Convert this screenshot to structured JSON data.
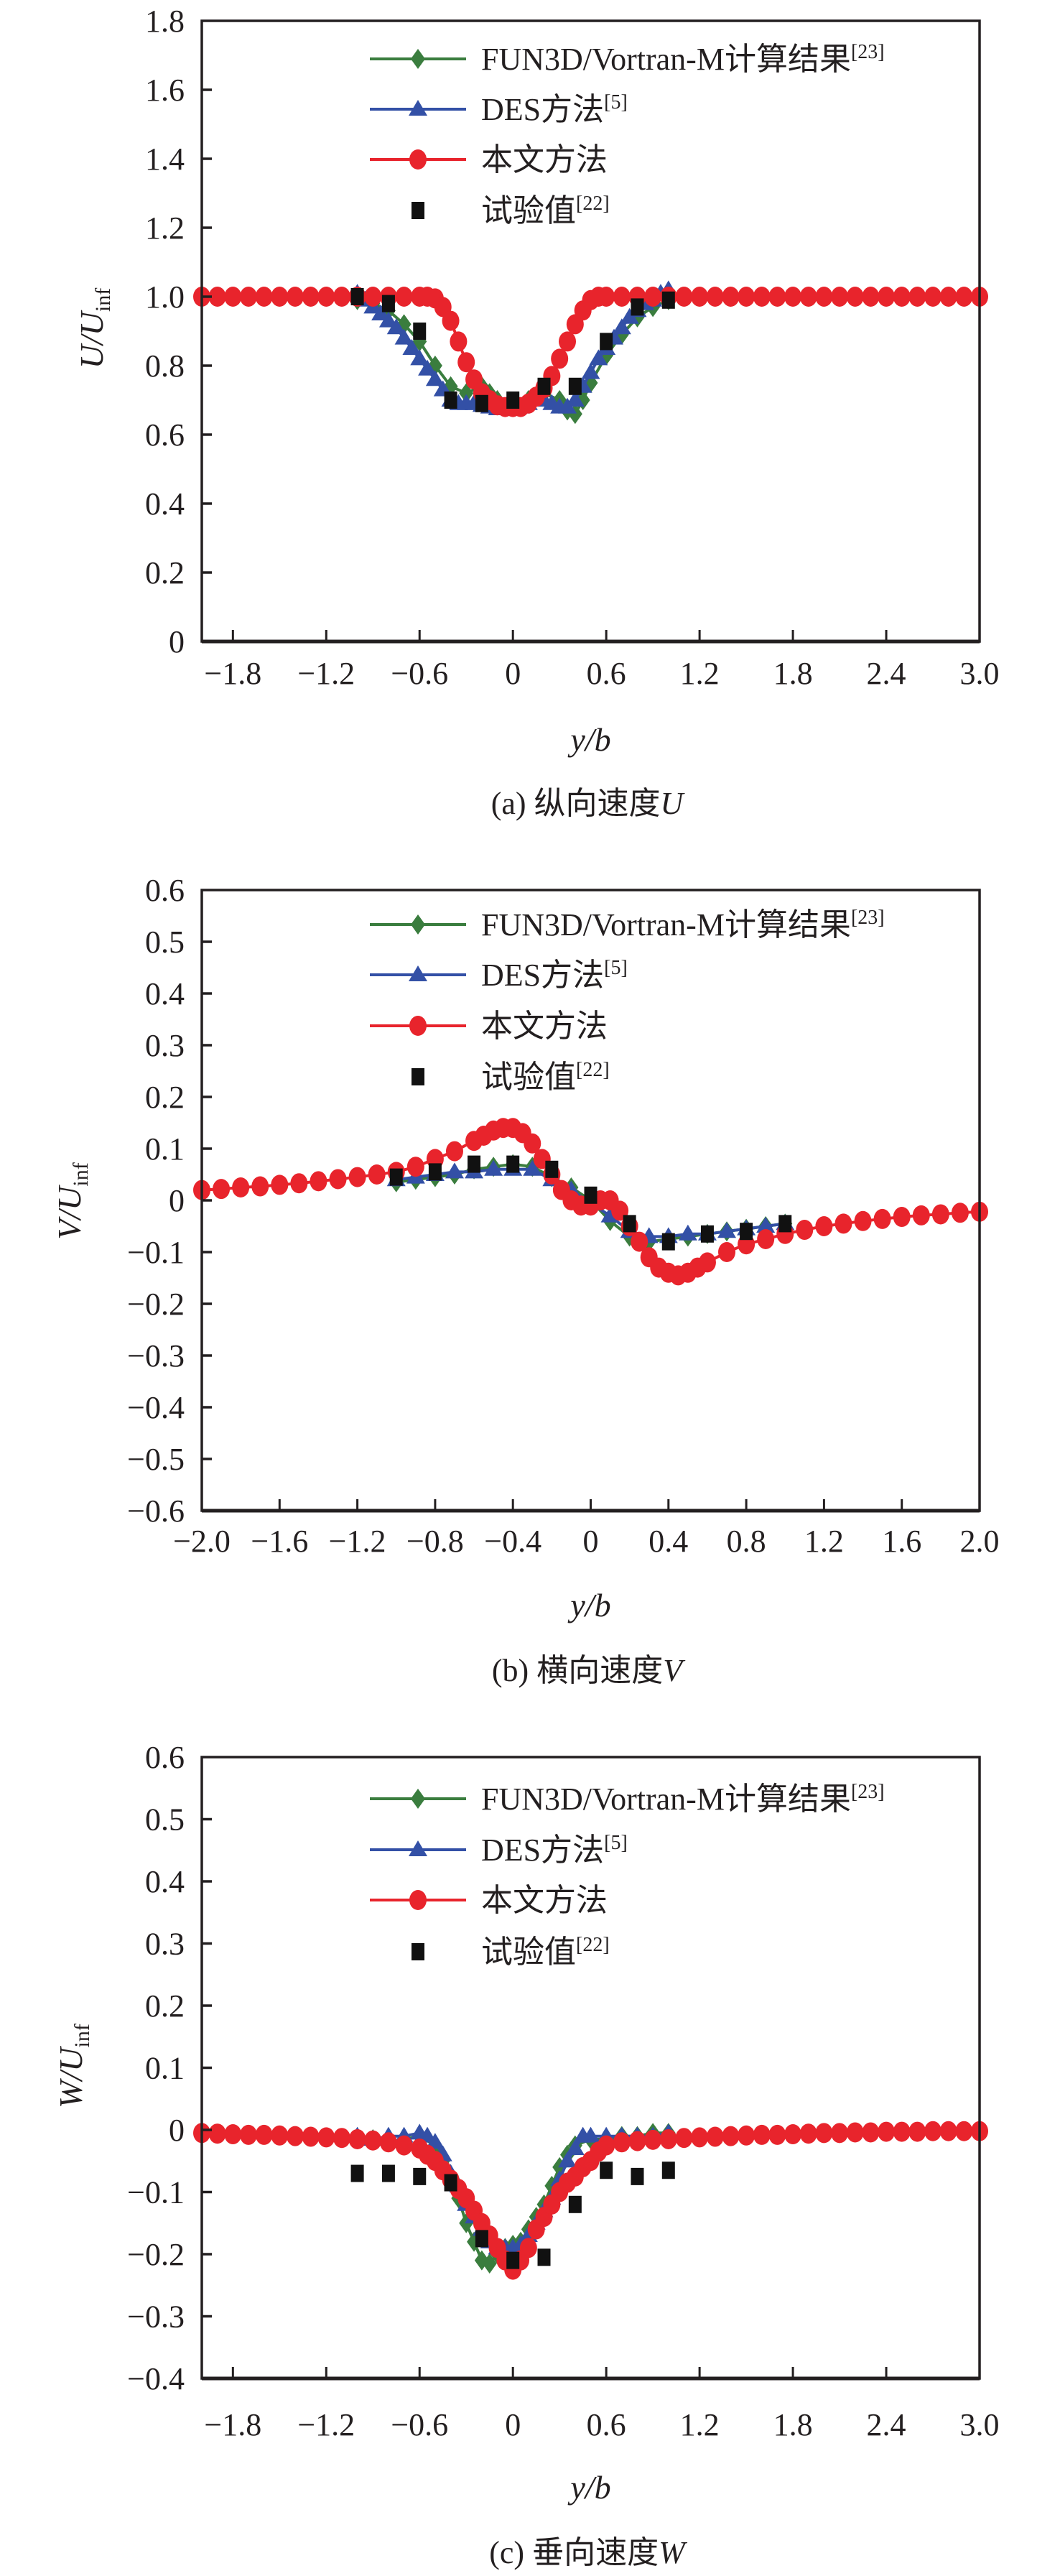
{
  "colors": {
    "fun3d": "#3a7d3e",
    "des": "#3350a6",
    "present": "#e8242c",
    "experiment": "#111111",
    "axis": "#231f20"
  },
  "legend": [
    {
      "key": "fun3d",
      "label": "FUN3D/Vortran-M计算结果",
      "ref": "[23]",
      "marker": "diamond-icon"
    },
    {
      "key": "des",
      "label": "DES方法",
      "ref": "[5]",
      "marker": "triangle-icon"
    },
    {
      "key": "present",
      "label": "本文方法",
      "ref": "",
      "marker": "circle-icon"
    },
    {
      "key": "experiment",
      "label": "试验值",
      "ref": "[22]",
      "marker": "square-icon"
    }
  ],
  "chart_data": [
    {
      "type": "line",
      "caption": "(a) 纵向速度",
      "caption_var": "U",
      "xlabel": "y/b",
      "ylabel": "U/U",
      "ylabel_sub": "inf",
      "xlim": [
        -2.0,
        3.0
      ],
      "ylim": [
        0,
        1.8
      ],
      "xticks": [
        -1.8,
        -1.2,
        -0.6,
        0,
        0.6,
        1.2,
        1.8,
        2.4,
        3.0
      ],
      "xtick_labels": [
        "−1.8",
        "−1.2",
        "−0.6",
        "0",
        "0.6",
        "1.2",
        "1.8",
        "2.4",
        "3.0"
      ],
      "yticks": [
        0,
        0.2,
        0.4,
        0.6,
        0.8,
        1.0,
        1.2,
        1.4,
        1.6,
        1.8
      ],
      "ytick_labels": [
        "0",
        "0.2",
        "0.4",
        "0.6",
        "0.8",
        "1.0",
        "1.2",
        "1.4",
        "1.6",
        "1.8"
      ],
      "grid": false,
      "legend_position": "top-right",
      "series": [
        {
          "name": "FUN3D/Vortran-M计算结果[23]",
          "key": "fun3d",
          "x": [
            -1.0,
            -0.9,
            -0.8,
            -0.7,
            -0.6,
            -0.5,
            -0.4,
            -0.3,
            -0.2,
            -0.15,
            -0.1,
            0,
            0.1,
            0.2,
            0.3,
            0.35,
            0.4,
            0.45,
            0.5,
            0.6,
            0.7,
            0.8,
            0.9,
            1.0
          ],
          "y": [
            0.99,
            0.98,
            0.96,
            0.92,
            0.87,
            0.8,
            0.74,
            0.72,
            0.74,
            0.72,
            0.7,
            0.68,
            0.7,
            0.72,
            0.7,
            0.67,
            0.66,
            0.7,
            0.75,
            0.83,
            0.89,
            0.94,
            0.97,
            0.99
          ]
        },
        {
          "name": "DES方法[5]",
          "key": "des",
          "x": [
            -1.0,
            -0.95,
            -0.9,
            -0.85,
            -0.8,
            -0.75,
            -0.7,
            -0.65,
            -0.6,
            -0.55,
            -0.5,
            -0.45,
            -0.4,
            -0.35,
            -0.3,
            -0.25,
            -0.2,
            -0.15,
            -0.1,
            -0.05,
            0,
            0.05,
            0.1,
            0.15,
            0.2,
            0.25,
            0.3,
            0.35,
            0.4,
            0.45,
            0.5,
            0.55,
            0.6,
            0.65,
            0.7,
            0.75,
            0.8,
            0.85,
            0.9,
            0.95,
            1.0
          ],
          "y": [
            1.01,
            0.99,
            0.97,
            0.95,
            0.93,
            0.91,
            0.88,
            0.85,
            0.82,
            0.79,
            0.76,
            0.73,
            0.7,
            0.69,
            0.69,
            0.69,
            0.685,
            0.68,
            0.675,
            0.675,
            0.675,
            0.68,
            0.69,
            0.7,
            0.7,
            0.69,
            0.68,
            0.68,
            0.7,
            0.74,
            0.78,
            0.82,
            0.85,
            0.88,
            0.91,
            0.94,
            0.96,
            0.98,
            0.99,
            1.01,
            1.02
          ]
        },
        {
          "name": "本文方法",
          "key": "present",
          "x": [
            -2.0,
            -1.9,
            -1.8,
            -1.7,
            -1.6,
            -1.5,
            -1.4,
            -1.3,
            -1.2,
            -1.1,
            -1.0,
            -0.9,
            -0.8,
            -0.7,
            -0.6,
            -0.55,
            -0.5,
            -0.45,
            -0.4,
            -0.35,
            -0.3,
            -0.25,
            -0.2,
            -0.15,
            -0.1,
            -0.05,
            0,
            0.05,
            0.1,
            0.15,
            0.2,
            0.25,
            0.3,
            0.35,
            0.4,
            0.45,
            0.5,
            0.55,
            0.6,
            0.7,
            0.8,
            0.9,
            1.0,
            1.1,
            1.2,
            1.3,
            1.4,
            1.5,
            1.6,
            1.7,
            1.8,
            1.9,
            2.0,
            2.1,
            2.2,
            2.3,
            2.4,
            2.5,
            2.6,
            2.7,
            2.8,
            2.9,
            3.0
          ],
          "y": [
            1.0,
            1.0,
            1.0,
            1.0,
            1.0,
            1.0,
            1.0,
            1.0,
            1.0,
            1.0,
            1.0,
            1.0,
            1.0,
            1.0,
            1.0,
            1.0,
            0.995,
            0.97,
            0.93,
            0.87,
            0.81,
            0.76,
            0.72,
            0.7,
            0.685,
            0.68,
            0.68,
            0.68,
            0.69,
            0.71,
            0.735,
            0.77,
            0.82,
            0.87,
            0.92,
            0.96,
            0.99,
            1.0,
            1.0,
            1.0,
            1.0,
            1.0,
            1.0,
            1.0,
            1.0,
            1.0,
            1.0,
            1.0,
            1.0,
            1.0,
            1.0,
            1.0,
            1.0,
            1.0,
            1.0,
            1.0,
            1.0,
            1.0,
            1.0,
            1.0,
            1.0,
            1.0,
            1.0
          ]
        },
        {
          "name": "试验值[22]",
          "key": "experiment",
          "x": [
            -1.0,
            -0.8,
            -0.6,
            -0.4,
            -0.2,
            0,
            0.2,
            0.4,
            0.6,
            0.8,
            1.0
          ],
          "y": [
            1.0,
            0.98,
            0.9,
            0.7,
            0.69,
            0.7,
            0.74,
            0.74,
            0.87,
            0.97,
            0.99
          ]
        }
      ]
    },
    {
      "type": "line",
      "caption": "(b) 横向速度",
      "caption_var": "V",
      "xlabel": "y/b",
      "ylabel": "V/U",
      "ylabel_sub": "inf",
      "xlim": [
        -2.0,
        2.0
      ],
      "ylim": [
        -0.6,
        0.6
      ],
      "xticks": [
        -2.0,
        -1.6,
        -1.2,
        -0.8,
        -0.4,
        0,
        0.4,
        0.8,
        1.2,
        1.6,
        2.0
      ],
      "xtick_labels": [
        "−2.0",
        "−1.6",
        "−1.2",
        "−0.8",
        "−0.4",
        "0",
        "0.4",
        "0.8",
        "1.2",
        "1.6",
        "2.0"
      ],
      "yticks": [
        -0.6,
        -0.5,
        -0.4,
        -0.3,
        -0.2,
        -0.1,
        0,
        0.1,
        0.2,
        0.3,
        0.4,
        0.5,
        0.6
      ],
      "ytick_labels": [
        "−0.6",
        "−0.5",
        "−0.4",
        "−0.3",
        "−0.2",
        "−0.1",
        "0",
        "0.1",
        "0.2",
        "0.3",
        "0.4",
        "0.5",
        "0.6"
      ],
      "grid": false,
      "legend_position": "top-right",
      "series": [
        {
          "name": "FUN3D/Vortran-M计算结果[23]",
          "key": "fun3d",
          "x": [
            -1.0,
            -0.9,
            -0.8,
            -0.7,
            -0.6,
            -0.5,
            -0.4,
            -0.3,
            -0.2,
            -0.1,
            0,
            0.1,
            0.2,
            0.3,
            0.4,
            0.5,
            0.6,
            0.7,
            0.8,
            0.9,
            1.0
          ],
          "y": [
            0.035,
            0.04,
            0.045,
            0.05,
            0.06,
            0.065,
            0.07,
            0.065,
            0.045,
            0.025,
            0.0,
            -0.04,
            -0.07,
            -0.08,
            -0.075,
            -0.07,
            -0.065,
            -0.06,
            -0.055,
            -0.05,
            -0.045
          ]
        },
        {
          "name": "DES方法[5]",
          "key": "des",
          "x": [
            -1.0,
            -0.9,
            -0.8,
            -0.7,
            -0.6,
            -0.5,
            -0.4,
            -0.3,
            -0.2,
            -0.1,
            0,
            0.1,
            0.2,
            0.3,
            0.4,
            0.5,
            0.6,
            0.7,
            0.8,
            0.9,
            1.0
          ],
          "y": [
            0.04,
            0.045,
            0.05,
            0.055,
            0.055,
            0.06,
            0.06,
            0.06,
            0.04,
            0.02,
            -0.005,
            -0.03,
            -0.06,
            -0.07,
            -0.07,
            -0.065,
            -0.065,
            -0.06,
            -0.055,
            -0.05,
            -0.045
          ]
        },
        {
          "name": "本文方法",
          "key": "present",
          "x": [
            -2.0,
            -1.9,
            -1.8,
            -1.7,
            -1.6,
            -1.5,
            -1.4,
            -1.3,
            -1.2,
            -1.1,
            -1.0,
            -0.9,
            -0.8,
            -0.7,
            -0.6,
            -0.55,
            -0.5,
            -0.45,
            -0.4,
            -0.35,
            -0.3,
            -0.25,
            -0.2,
            -0.15,
            -0.1,
            -0.05,
            0,
            0.05,
            0.1,
            0.15,
            0.2,
            0.25,
            0.3,
            0.35,
            0.4,
            0.45,
            0.5,
            0.55,
            0.6,
            0.7,
            0.8,
            0.9,
            1.0,
            1.1,
            1.2,
            1.3,
            1.4,
            1.5,
            1.6,
            1.7,
            1.8,
            1.9,
            2.0
          ],
          "y": [
            0.02,
            0.022,
            0.025,
            0.027,
            0.03,
            0.033,
            0.037,
            0.041,
            0.045,
            0.05,
            0.055,
            0.065,
            0.08,
            0.095,
            0.115,
            0.125,
            0.135,
            0.14,
            0.14,
            0.13,
            0.11,
            0.08,
            0.05,
            0.02,
            0.0,
            -0.01,
            -0.01,
            0.0,
            0.0,
            -0.02,
            -0.05,
            -0.08,
            -0.11,
            -0.13,
            -0.14,
            -0.145,
            -0.14,
            -0.13,
            -0.12,
            -0.1,
            -0.085,
            -0.075,
            -0.065,
            -0.057,
            -0.05,
            -0.045,
            -0.04,
            -0.036,
            -0.032,
            -0.029,
            -0.027,
            -0.024,
            -0.022
          ]
        },
        {
          "name": "试验值[22]",
          "key": "experiment",
          "x": [
            -1.0,
            -0.8,
            -0.6,
            -0.4,
            -0.2,
            0,
            0.2,
            0.4,
            0.6,
            0.8,
            1.0
          ],
          "y": [
            0.045,
            0.055,
            0.07,
            0.07,
            0.06,
            0.01,
            -0.045,
            -0.08,
            -0.065,
            -0.06,
            -0.045
          ]
        }
      ]
    },
    {
      "type": "line",
      "caption": "(c) 垂向速度",
      "caption_var": "W",
      "xlabel": "y/b",
      "ylabel": "W/U",
      "ylabel_sub": "inf",
      "xlim": [
        -2.0,
        3.0
      ],
      "ylim": [
        -0.4,
        0.6
      ],
      "xticks": [
        -1.8,
        -1.2,
        -0.6,
        0,
        0.6,
        1.2,
        1.8,
        2.4,
        3.0
      ],
      "xtick_labels": [
        "−1.8",
        "−1.2",
        "−0.6",
        "0",
        "0.6",
        "1.2",
        "1.8",
        "2.4",
        "3.0"
      ],
      "yticks": [
        -0.4,
        -0.3,
        -0.2,
        -0.1,
        0,
        0.1,
        0.2,
        0.3,
        0.4,
        0.5,
        0.6
      ],
      "ytick_labels": [
        "−0.4",
        "−0.3",
        "−0.2",
        "−0.1",
        "0",
        "0.1",
        "0.2",
        "0.3",
        "0.4",
        "0.5",
        "0.6"
      ],
      "grid": false,
      "legend_position": "top-right",
      "series": [
        {
          "name": "FUN3D/Vortran-M计算结果[23]",
          "key": "fun3d",
          "x": [
            -1.0,
            -0.9,
            -0.8,
            -0.7,
            -0.6,
            -0.5,
            -0.45,
            -0.4,
            -0.35,
            -0.3,
            -0.25,
            -0.2,
            -0.15,
            -0.1,
            -0.05,
            0,
            0.05,
            0.1,
            0.15,
            0.2,
            0.25,
            0.3,
            0.35,
            0.4,
            0.5,
            0.6,
            0.7,
            0.8,
            0.9,
            1.0
          ],
          "y": [
            -0.015,
            -0.015,
            -0.02,
            -0.015,
            -0.01,
            -0.025,
            -0.05,
            -0.08,
            -0.11,
            -0.15,
            -0.18,
            -0.21,
            -0.215,
            -0.2,
            -0.19,
            -0.185,
            -0.18,
            -0.16,
            -0.14,
            -0.12,
            -0.09,
            -0.06,
            -0.04,
            -0.025,
            -0.015,
            -0.015,
            -0.01,
            -0.01,
            -0.005,
            -0.005
          ]
        },
        {
          "name": "DES方法[5]",
          "key": "des",
          "x": [
            -1.0,
            -0.9,
            -0.8,
            -0.7,
            -0.6,
            -0.55,
            -0.5,
            -0.45,
            -0.4,
            -0.35,
            -0.3,
            -0.25,
            -0.2,
            -0.15,
            -0.1,
            -0.05,
            0,
            0.05,
            0.1,
            0.15,
            0.2,
            0.25,
            0.3,
            0.35,
            0.4,
            0.45,
            0.5,
            0.6,
            0.7,
            0.8,
            0.9,
            1.0
          ],
          "y": [
            -0.01,
            -0.015,
            -0.01,
            -0.01,
            -0.005,
            -0.01,
            -0.02,
            -0.04,
            -0.07,
            -0.09,
            -0.12,
            -0.14,
            -0.16,
            -0.18,
            -0.19,
            -0.19,
            -0.19,
            -0.185,
            -0.17,
            -0.15,
            -0.13,
            -0.11,
            -0.08,
            -0.05,
            -0.03,
            -0.01,
            -0.01,
            -0.01,
            -0.01,
            -0.01,
            -0.01,
            -0.005
          ]
        },
        {
          "name": "本文方法",
          "key": "present",
          "x": [
            -2.0,
            -1.9,
            -1.8,
            -1.7,
            -1.6,
            -1.5,
            -1.4,
            -1.3,
            -1.2,
            -1.1,
            -1.0,
            -0.9,
            -0.8,
            -0.7,
            -0.6,
            -0.55,
            -0.5,
            -0.45,
            -0.4,
            -0.35,
            -0.3,
            -0.25,
            -0.2,
            -0.15,
            -0.1,
            -0.05,
            0,
            0.05,
            0.1,
            0.15,
            0.2,
            0.25,
            0.3,
            0.35,
            0.4,
            0.45,
            0.5,
            0.55,
            0.6,
            0.7,
            0.8,
            0.9,
            1.0,
            1.1,
            1.2,
            1.3,
            1.4,
            1.5,
            1.6,
            1.7,
            1.8,
            1.9,
            2.0,
            2.1,
            2.2,
            2.3,
            2.4,
            2.5,
            2.6,
            2.7,
            2.8,
            2.9,
            3.0
          ],
          "y": [
            -0.005,
            -0.006,
            -0.007,
            -0.008,
            -0.008,
            -0.009,
            -0.01,
            -0.011,
            -0.012,
            -0.013,
            -0.015,
            -0.017,
            -0.02,
            -0.025,
            -0.03,
            -0.04,
            -0.05,
            -0.065,
            -0.08,
            -0.095,
            -0.11,
            -0.13,
            -0.15,
            -0.17,
            -0.19,
            -0.21,
            -0.225,
            -0.21,
            -0.19,
            -0.16,
            -0.14,
            -0.12,
            -0.1,
            -0.085,
            -0.075,
            -0.06,
            -0.05,
            -0.035,
            -0.025,
            -0.02,
            -0.018,
            -0.016,
            -0.015,
            -0.013,
            -0.012,
            -0.011,
            -0.01,
            -0.009,
            -0.008,
            -0.008,
            -0.007,
            -0.006,
            -0.005,
            -0.005,
            -0.004,
            -0.004,
            -0.003,
            -0.003,
            -0.003,
            -0.002,
            -0.002,
            -0.002,
            -0.002
          ]
        },
        {
          "name": "试验值[22]",
          "key": "experiment",
          "x": [
            -1.0,
            -0.8,
            -0.6,
            -0.4,
            -0.2,
            0,
            0.2,
            0.4,
            0.6,
            0.8,
            1.0
          ],
          "y": [
            -0.07,
            -0.07,
            -0.075,
            -0.085,
            -0.175,
            -0.21,
            -0.205,
            -0.12,
            -0.065,
            -0.075,
            -0.065
          ]
        }
      ]
    }
  ]
}
